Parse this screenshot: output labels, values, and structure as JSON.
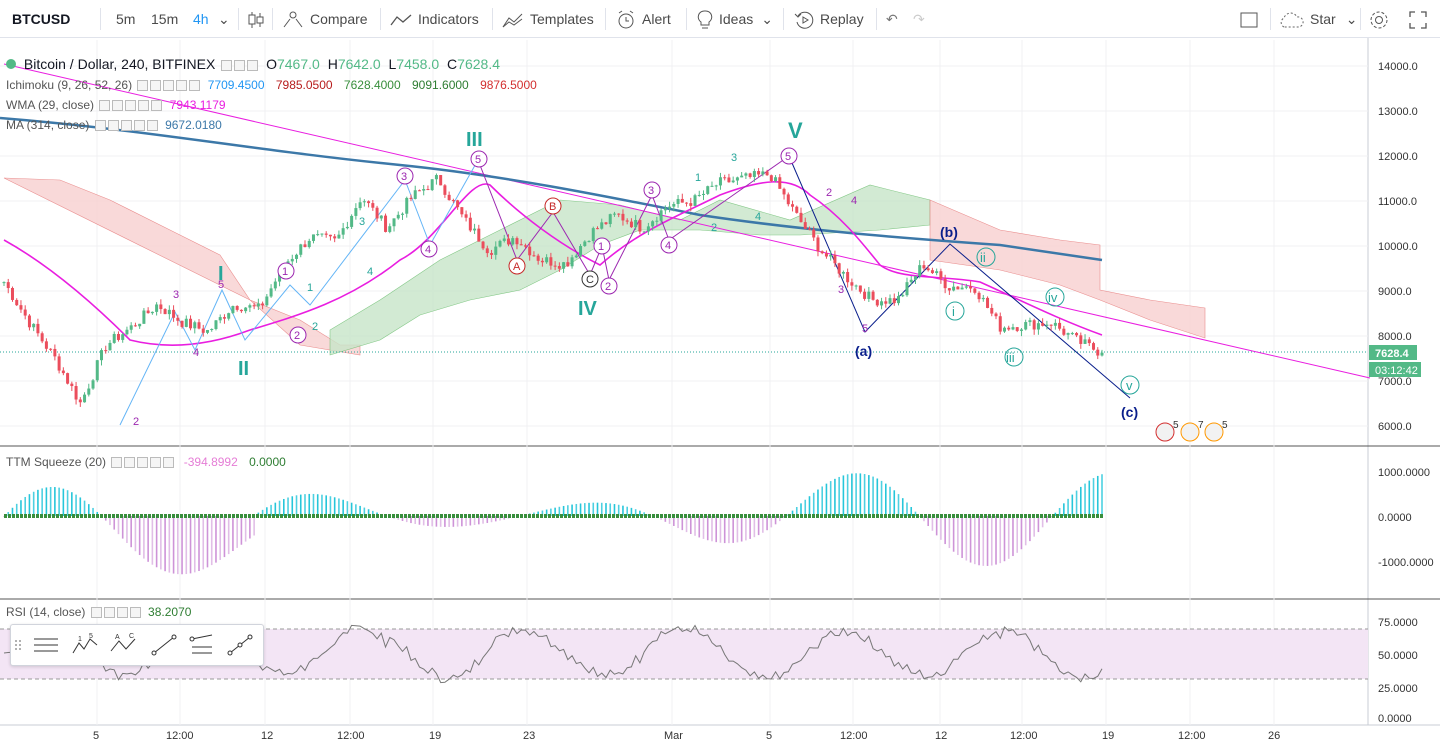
{
  "toolbar": {
    "symbol": "BTCUSD",
    "intervals": [
      "5m",
      "15m",
      "4h"
    ],
    "active_interval": "4h",
    "compare": "Compare",
    "indicators": "Indicators",
    "templates": "Templates",
    "alert": "Alert",
    "ideas": "Ideas",
    "replay": "Replay",
    "star": "Star"
  },
  "legend": {
    "title": "Bitcoin / Dollar, 240, BITFINEX",
    "o_label": "O",
    "o": "7467.0",
    "h_label": "H",
    "h": "7642.0",
    "l_label": "L",
    "l": "7458.0",
    "c_label": "C",
    "c": "7628.4",
    "ichimoku": "Ichimoku (9, 26, 52, 26)",
    "ich_values": [
      "7709.4500",
      "7985.0500",
      "7628.4000",
      "9091.6000",
      "9876.5000"
    ],
    "wma": "WMA (29, close)",
    "wma_value": "7943.1179",
    "ma": "MA (314, close)",
    "ma_value": "9672.0180",
    "ttm": "TTM Squeeze (20)",
    "ttm_values": [
      "-394.8992",
      "0.0000"
    ],
    "rsi": "RSI (14, close)",
    "rsi_value": "38.2070"
  },
  "price_axis": {
    "ticks": [
      "14000.0",
      "13000.0",
      "12000.0",
      "11000.0",
      "10000.0",
      "9000.0",
      "8000.0",
      "7000.0",
      "6000.0"
    ],
    "last_price": "7628.4",
    "countdown": "03:12:42"
  },
  "ttm_axis": {
    "ticks": [
      "1000.0000",
      "0.0000",
      "-1000.0000"
    ]
  },
  "rsi_axis": {
    "ticks": [
      "75.0000",
      "50.0000",
      "25.0000",
      "0.0000"
    ]
  },
  "time_axis": {
    "ticks": [
      "5",
      "12:00",
      "12",
      "12:00",
      "19",
      "23",
      "Mar",
      "5",
      "12:00",
      "12",
      "12:00",
      "19",
      "12:00",
      "26"
    ]
  },
  "wave_labels": {
    "major": [
      "I",
      "II",
      "III",
      "IV",
      "V"
    ],
    "abc": [
      "(a)",
      "(b)",
      "(c)"
    ],
    "minor": [
      "i",
      "ii",
      "iii",
      "iv",
      "v"
    ],
    "circled": [
      "1",
      "2",
      "3",
      "4",
      "5",
      "A",
      "B",
      "C"
    ]
  },
  "event_counts": [
    "5",
    "7",
    "5"
  ],
  "colors": {
    "up": "#53b987",
    "down": "#eb4d5c",
    "ma": "#3c78a8",
    "wma": "#e91ee0",
    "teal": "#26a69a",
    "navy": "#0a1f8c",
    "cloud_red": "#f8d0d0",
    "cloud_green": "#c8e6c9"
  },
  "chart_data": {
    "type": "candlestick",
    "title": "Bitcoin / Dollar, 240, BITFINEX",
    "ylim": [
      5500,
      14400
    ],
    "close_series": [
      {
        "d": "Feb 3",
        "v": 9200
      },
      {
        "d": "Feb 4",
        "v": 8300
      },
      {
        "d": "Feb 5",
        "v": 7500
      },
      {
        "d": "Feb 6",
        "v": 6500
      },
      {
        "d": "Feb 7",
        "v": 7800
      },
      {
        "d": "Feb 8",
        "v": 8200
      },
      {
        "d": "Feb 9",
        "v": 8700
      },
      {
        "d": "Feb 10",
        "v": 8300
      },
      {
        "d": "Feb 11",
        "v": 8100
      },
      {
        "d": "Feb 12",
        "v": 8700
      },
      {
        "d": "Feb 13",
        "v": 8600
      },
      {
        "d": "Feb 14",
        "v": 9600
      },
      {
        "d": "Feb 15",
        "v": 10200
      },
      {
        "d": "Feb 16",
        "v": 10100
      },
      {
        "d": "Feb 17",
        "v": 11100
      },
      {
        "d": "Feb 18",
        "v": 10400
      },
      {
        "d": "Feb 19",
        "v": 11100
      },
      {
        "d": "Feb 20",
        "v": 11500
      },
      {
        "d": "Feb 21",
        "v": 10600
      },
      {
        "d": "Feb 22",
        "v": 9900
      },
      {
        "d": "Feb 23",
        "v": 10200
      },
      {
        "d": "Feb 24",
        "v": 9700
      },
      {
        "d": "Feb 25",
        "v": 9600
      },
      {
        "d": "Feb 26",
        "v": 10300
      },
      {
        "d": "Feb 27",
        "v": 10700
      },
      {
        "d": "Feb 28",
        "v": 10400
      },
      {
        "d": "Mar 1",
        "v": 10900
      },
      {
        "d": "Mar 2",
        "v": 11000
      },
      {
        "d": "Mar 3",
        "v": 11400
      },
      {
        "d": "Mar 4",
        "v": 11500
      },
      {
        "d": "Mar 5",
        "v": 11600
      },
      {
        "d": "Mar 6",
        "v": 10700
      },
      {
        "d": "Mar 7",
        "v": 9900
      },
      {
        "d": "Mar 8",
        "v": 9300
      },
      {
        "d": "Mar 9",
        "v": 8800
      },
      {
        "d": "Mar 10",
        "v": 8800
      },
      {
        "d": "Mar 11",
        "v": 9600
      },
      {
        "d": "Mar 12",
        "v": 9100
      },
      {
        "d": "Mar 13",
        "v": 9100
      },
      {
        "d": "Mar 14",
        "v": 8200
      },
      {
        "d": "Mar 15",
        "v": 8250
      },
      {
        "d": "Mar 16",
        "v": 8300
      },
      {
        "d": "Mar 17",
        "v": 7900
      },
      {
        "d": "Mar 18",
        "v": 7628.4
      }
    ],
    "last_price": 7628.4
  }
}
